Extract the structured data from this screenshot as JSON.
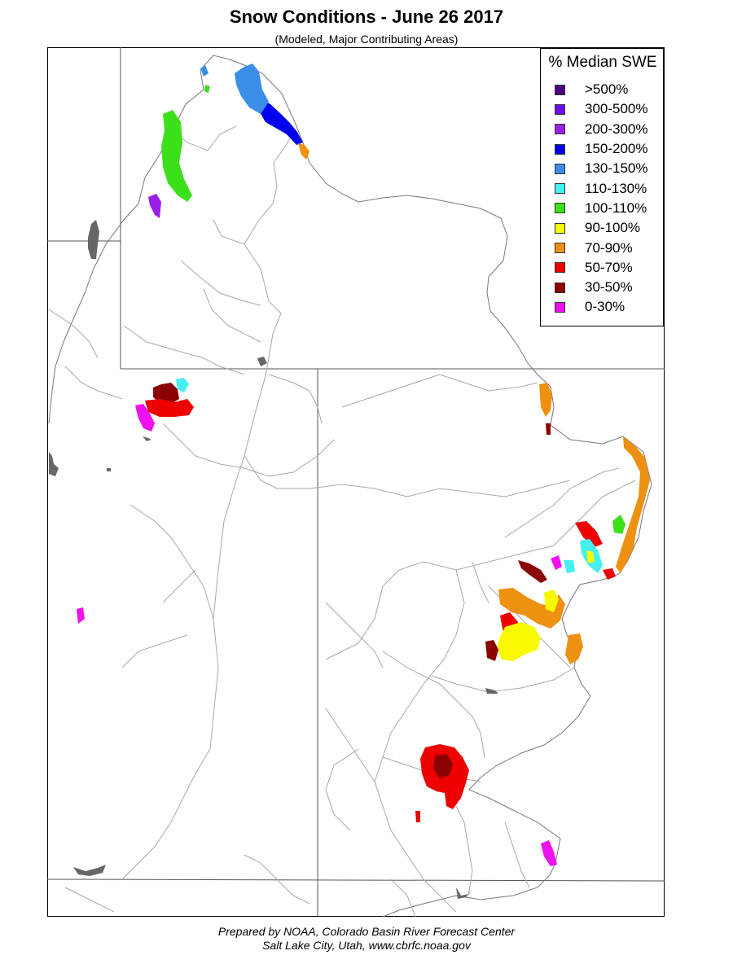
{
  "header": {
    "title": "Snow Conditions - June 26 2017",
    "subtitle": "(Modeled, Major Contributing Areas)"
  },
  "legend": {
    "title": "% Median SWE",
    "items": [
      {
        "label": ">500%",
        "color": "#4b0082"
      },
      {
        "label": "300-500%",
        "color": "#6a0ff0"
      },
      {
        "label": "200-300%",
        "color": "#9b1fe8"
      },
      {
        "label": "150-200%",
        "color": "#0000ee"
      },
      {
        "label": "130-150%",
        "color": "#3a8ee8"
      },
      {
        "label": "110-130%",
        "color": "#44f0f0"
      },
      {
        "label": "100-110%",
        "color": "#3ce01a"
      },
      {
        "label": "90-100%",
        "color": "#f8f800"
      },
      {
        "label": "70-90%",
        "color": "#ee9010"
      },
      {
        "label": "50-70%",
        "color": "#ee0000"
      },
      {
        "label": "30-50%",
        "color": "#8b0000"
      },
      {
        "label": "0-30%",
        "color": "#ee10ee"
      }
    ]
  },
  "footer": {
    "line1": "Prepared by NOAA, Colorado Basin River Forecast Center",
    "line2": "Salt Lake City, Utah, www.cbrfc.noaa.gov"
  }
}
